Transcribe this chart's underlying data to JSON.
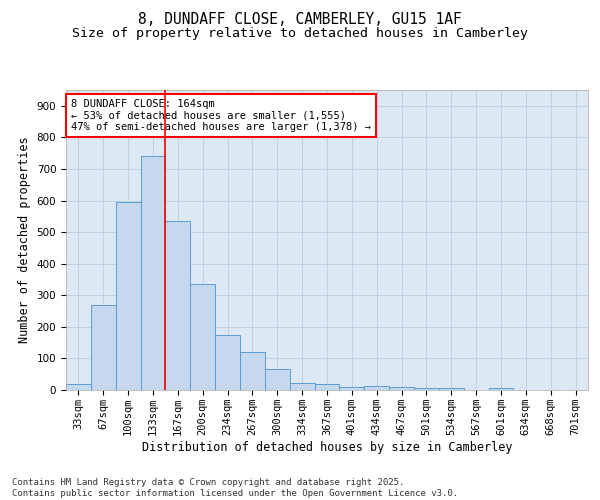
{
  "title_line1": "8, DUNDAFF CLOSE, CAMBERLEY, GU15 1AF",
  "title_line2": "Size of property relative to detached houses in Camberley",
  "xlabel": "Distribution of detached houses by size in Camberley",
  "ylabel": "Number of detached properties",
  "categories": [
    "33sqm",
    "67sqm",
    "100sqm",
    "133sqm",
    "167sqm",
    "200sqm",
    "234sqm",
    "267sqm",
    "300sqm",
    "334sqm",
    "367sqm",
    "401sqm",
    "434sqm",
    "467sqm",
    "501sqm",
    "534sqm",
    "567sqm",
    "601sqm",
    "634sqm",
    "668sqm",
    "701sqm"
  ],
  "values": [
    20,
    270,
    595,
    740,
    535,
    335,
    175,
    120,
    68,
    22,
    18,
    10,
    12,
    8,
    5,
    5,
    0,
    5,
    0,
    0,
    0
  ],
  "bar_color": "#c5d8ed",
  "bar_edge_color": "#5b9bd5",
  "vline_index": 3.5,
  "vline_color": "red",
  "annotation_text": "8 DUNDAFF CLOSE: 164sqm\n← 53% of detached houses are smaller (1,555)\n47% of semi-detached houses are larger (1,378) →",
  "annotation_box_edge": "red",
  "ylim": [
    0,
    950
  ],
  "yticks": [
    0,
    100,
    200,
    300,
    400,
    500,
    600,
    700,
    800,
    900
  ],
  "background_color": "#ffffff",
  "plot_bg_color": "#dce9f5",
  "grid_color": "#b8cfe0",
  "footer_line1": "Contains HM Land Registry data © Crown copyright and database right 2025.",
  "footer_line2": "Contains public sector information licensed under the Open Government Licence v3.0.",
  "title_fontsize": 10.5,
  "subtitle_fontsize": 9.5,
  "axis_label_fontsize": 8.5,
  "tick_fontsize": 7.5,
  "annotation_fontsize": 7.5,
  "footer_fontsize": 6.5
}
